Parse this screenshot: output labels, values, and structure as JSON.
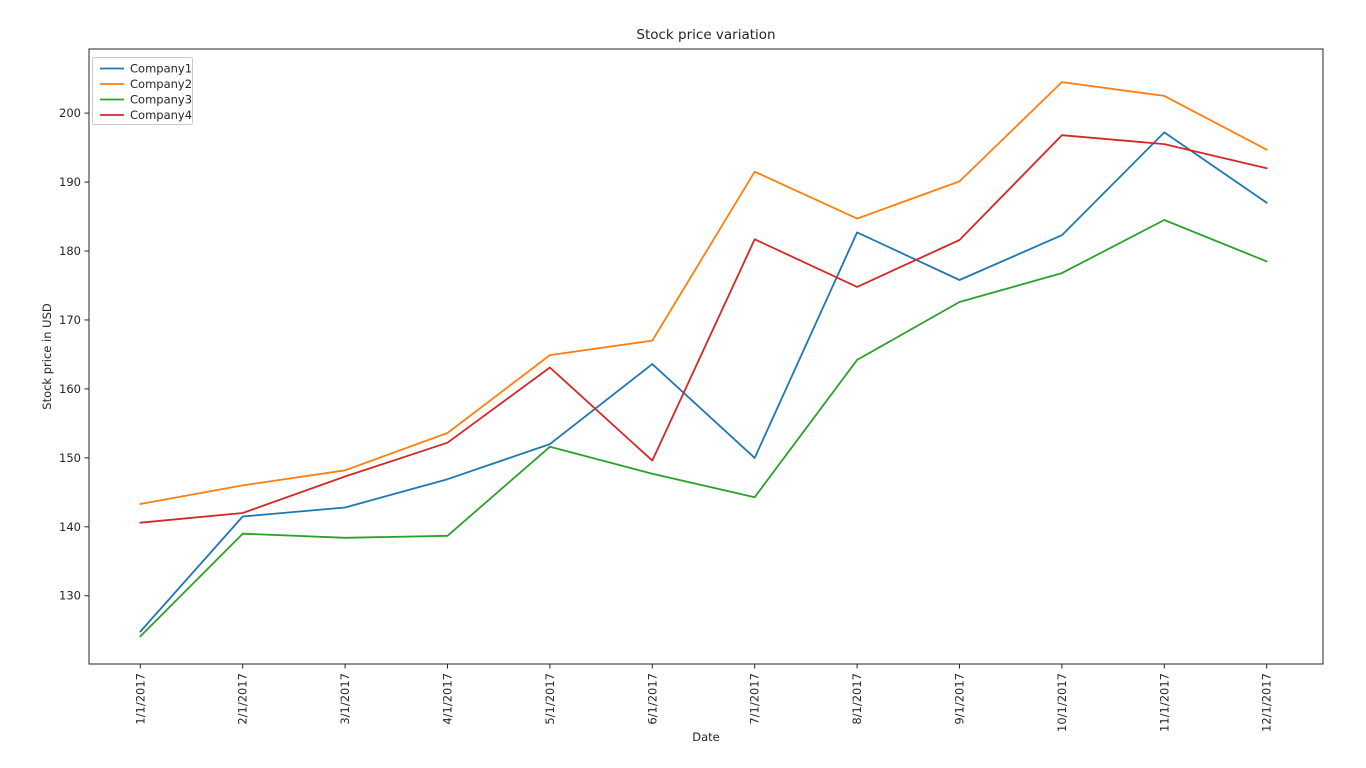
{
  "chart_data": {
    "type": "line",
    "title": "Stock price variation",
    "xlabel": "Date",
    "ylabel": "Stock price in USD",
    "categories": [
      "1/1/2017",
      "2/1/2017",
      "3/1/2017",
      "4/1/2017",
      "5/1/2017",
      "6/1/2017",
      "7/1/2017",
      "8/1/2017",
      "9/1/2017",
      "10/1/2017",
      "11/1/2017",
      "12/1/2017"
    ],
    "y_ticks": [
      130,
      140,
      150,
      160,
      170,
      180,
      190,
      200
    ],
    "ylim": [
      120.1,
      209.3
    ],
    "grid": false,
    "legend_position": "upper left",
    "axis_color": "#262626",
    "series": [
      {
        "name": "Company1",
        "color": "#1f77b4",
        "values": [
          124.8,
          141.5,
          142.8,
          146.9,
          152.0,
          163.6,
          150.0,
          182.7,
          175.8,
          182.3,
          197.2,
          187.0
        ]
      },
      {
        "name": "Company2",
        "color": "#ff7f0e",
        "values": [
          143.3,
          146.0,
          148.2,
          153.6,
          164.9,
          167.0,
          191.5,
          184.7,
          190.1,
          204.5,
          202.5,
          194.7
        ]
      },
      {
        "name": "Company3",
        "color": "#2ca02c",
        "values": [
          124.1,
          139.0,
          138.4,
          138.7,
          151.6,
          147.7,
          144.3,
          164.2,
          172.6,
          176.8,
          184.5,
          178.5
        ]
      },
      {
        "name": "Company4",
        "color": "#d62728",
        "values": [
          140.6,
          142.0,
          147.3,
          152.2,
          163.1,
          149.6,
          181.7,
          174.8,
          181.6,
          196.8,
          195.5,
          192.0
        ]
      }
    ]
  }
}
